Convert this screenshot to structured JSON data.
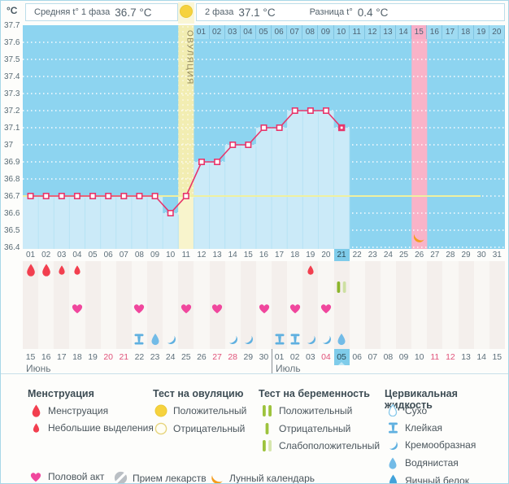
{
  "header": {
    "unit": "°C",
    "avg_phase1_prefix": "Средняя t° 1 фаза",
    "avg_phase1_value": "36.7 °C",
    "phase2_prefix": "2 фаза",
    "phase2_value": "37.1 °C",
    "diff_prefix": "Разница t°",
    "diff_value": "0.4 °C",
    "ovulation_test": {
      "day": 11,
      "result": "positive"
    }
  },
  "chart_data": {
    "type": "line",
    "title": "Basal body temperature chart",
    "ylabel": "°C",
    "ylim": [
      36.4,
      37.7
    ],
    "yticks": [
      "37.7",
      "37.6",
      "37.5",
      "37.4",
      "37.3",
      "37.2",
      "37.1",
      "37",
      "36.9",
      "36.8",
      "36.7",
      "36.6",
      "36.5",
      "36.4"
    ],
    "ytick_values": [
      37.7,
      37.6,
      37.5,
      37.4,
      37.3,
      37.2,
      37.1,
      37.0,
      36.9,
      36.8,
      36.7,
      36.6,
      36.5,
      36.4
    ],
    "x_cycle_days": [
      1,
      2,
      3,
      4,
      5,
      6,
      7,
      8,
      9,
      10,
      11,
      12,
      13,
      14,
      15,
      16,
      17,
      18,
      19,
      20,
      21
    ],
    "temperatures": [
      36.7,
      36.7,
      36.7,
      36.7,
      36.7,
      36.7,
      36.7,
      36.7,
      36.7,
      36.6,
      36.7,
      36.9,
      36.9,
      37.0,
      37.0,
      37.1,
      37.1,
      37.2,
      37.2,
      37.2,
      37.1
    ],
    "coverline": 36.7,
    "ovulation_band_day": 11,
    "ovulation_band_label": "ОВУЛЯЦИЯ",
    "lunar_band_day": 26,
    "grid": true,
    "legend_position": "bottom"
  },
  "dpo_row": {
    "days": [
      "01",
      "02",
      "03",
      "04",
      "05",
      "06",
      "07",
      "08",
      "09",
      "10",
      "11",
      "12",
      "13",
      "14",
      "15",
      "16",
      "17",
      "18",
      "19",
      "20"
    ],
    "highlighted": "15"
  },
  "cycle_row": {
    "days": [
      "01",
      "02",
      "03",
      "04",
      "05",
      "06",
      "07",
      "08",
      "09",
      "10",
      "11",
      "12",
      "13",
      "14",
      "15",
      "16",
      "17",
      "18",
      "19",
      "20",
      "21",
      "22",
      "23",
      "24",
      "25",
      "26",
      "27",
      "28",
      "29",
      "30",
      "31"
    ],
    "selected": "21"
  },
  "events": {
    "menstruation": [
      {
        "day": 1,
        "size": "big"
      },
      {
        "day": 2,
        "size": "big"
      },
      {
        "day": 3,
        "size": "small"
      },
      {
        "day": 4,
        "size": "small"
      },
      {
        "day": 19,
        "size": "small"
      }
    ],
    "pregnancy_tests": [
      {
        "day": 21,
        "result": "weak-positive"
      }
    ],
    "intercourse_days": [
      4,
      8,
      11,
      13,
      16,
      18,
      20
    ],
    "cervical_fluid": [
      {
        "day": 8,
        "type": "sticky"
      },
      {
        "day": 9,
        "type": "watery"
      },
      {
        "day": 10,
        "type": "creamy"
      },
      {
        "day": 14,
        "type": "creamy"
      },
      {
        "day": 15,
        "type": "creamy"
      },
      {
        "day": 17,
        "type": "sticky"
      },
      {
        "day": 18,
        "type": "sticky"
      },
      {
        "day": 19,
        "type": "creamy"
      },
      {
        "day": 20,
        "type": "creamy"
      },
      {
        "day": 21,
        "type": "watery"
      }
    ]
  },
  "date_row": {
    "dates": [
      "15",
      "16",
      "17",
      "18",
      "19",
      "20",
      "21",
      "22",
      "23",
      "24",
      "25",
      "26",
      "27",
      "28",
      "29",
      "30",
      "01",
      "02",
      "03",
      "04",
      "05",
      "06",
      "07",
      "08",
      "09",
      "10",
      "11",
      "12",
      "13",
      "14",
      "15"
    ],
    "weekend_indices": [
      5,
      6,
      12,
      13,
      19,
      26,
      27
    ],
    "selected_index": 20,
    "month_split_index": 16,
    "months": [
      "Июнь",
      "Июль"
    ]
  },
  "legend": {
    "col1": {
      "title": "Менструация",
      "items": [
        {
          "icon": "menses-big",
          "label": "Менструация"
        },
        {
          "icon": "menses-small",
          "label": "Небольшие выделения"
        }
      ]
    },
    "col2": {
      "title": "Тест на овуляцию",
      "items": [
        {
          "icon": "ovu-pos",
          "label": "Положительный"
        },
        {
          "icon": "ovu-neg",
          "label": "Отрицательный"
        }
      ]
    },
    "col3": {
      "title": "Тест на беременность",
      "items": [
        {
          "icon": "preg-pos",
          "label": "Положительный"
        },
        {
          "icon": "preg-neg",
          "label": "Отрицательный"
        },
        {
          "icon": "preg-weak",
          "label": "Слабоположительный"
        }
      ]
    },
    "col4": {
      "title": "Цервикальная жидкость",
      "items": [
        {
          "icon": "cf-dry",
          "label": "Сухо"
        },
        {
          "icon": "cf-sticky",
          "label": "Клейкая"
        },
        {
          "icon": "cf-creamy",
          "label": "Кремообразная"
        },
        {
          "icon": "cf-watery",
          "label": "Водянистая"
        },
        {
          "icon": "cf-egg",
          "label": "Яичный белок"
        }
      ]
    },
    "bottom": [
      {
        "icon": "heart",
        "label": "Половой акт"
      },
      {
        "icon": "pill",
        "label": "Прием лекарств"
      },
      {
        "icon": "moon",
        "label": "Лунный календарь"
      }
    ]
  },
  "colors": {
    "chart_bg": "#8dd4f0",
    "area_fill": "#cbeaf8",
    "ovulation_band": "#f2edb2",
    "lunar_band": "#f9b3c8",
    "temp_line": "#e7356b",
    "coverline": "#eff0a0",
    "menses_red": "#f23f4f",
    "heart_pink": "#f0479d",
    "test_green": "#9dc33d",
    "cervical_blue": "#5fb0e0",
    "moon_orange": "#f59d1f",
    "selected_day_bg": "#7fccea"
  }
}
